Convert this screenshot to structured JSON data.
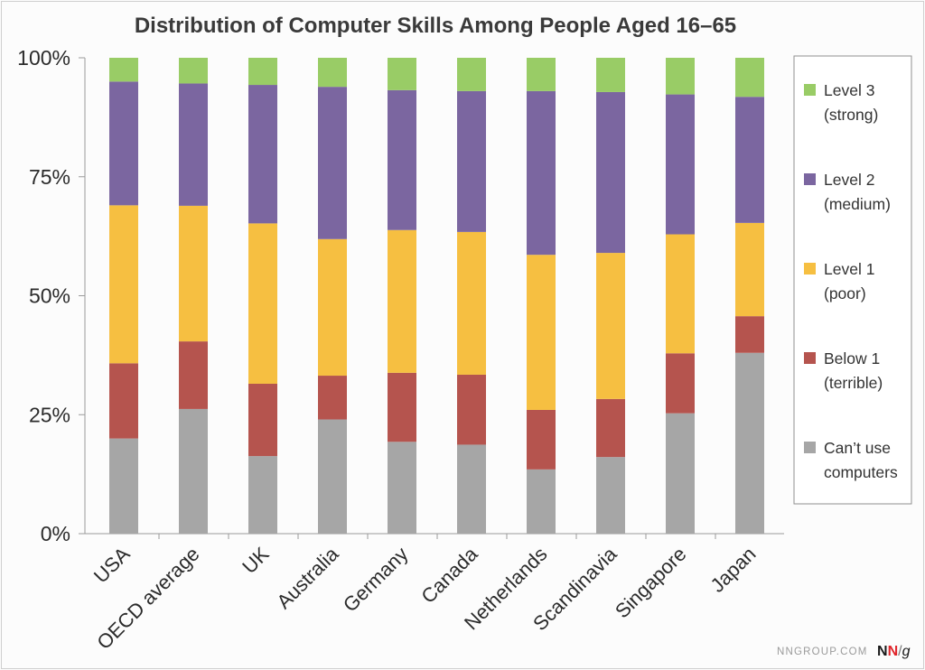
{
  "chart_data": {
    "type": "bar",
    "stacked": true,
    "title": "Distribution of Computer Skills Among People Aged 16–65",
    "categories": [
      "USA",
      "OECD average",
      "UK",
      "Australia",
      "Germany",
      "Canada",
      "Netherlands",
      "Scandinavia",
      "Singapore",
      "Japan"
    ],
    "ylim": [
      0,
      100
    ],
    "yticks": [
      "0%",
      "25%",
      "50%",
      "75%",
      "100%"
    ],
    "grid": false,
    "legend": "right",
    "series": [
      {
        "name": "Can't use computers",
        "label_lines": [
          "Can’t use",
          "computers"
        ],
        "color": "#a6a6a6",
        "values": [
          20,
          26.2,
          16.3,
          24,
          19.3,
          18.7,
          13.5,
          16.1,
          25.3,
          38
        ]
      },
      {
        "name": "Below 1 (terrible)",
        "label_lines": [
          "Below 1",
          "(terrible)"
        ],
        "color": "#b5544e",
        "values": [
          15.8,
          14.2,
          15.2,
          9.2,
          14.5,
          14.7,
          12.5,
          12.2,
          12.6,
          7.7
        ]
      },
      {
        "name": "Level 1 (poor)",
        "label_lines": [
          "Level 1",
          "(poor)"
        ],
        "color": "#f6bf41",
        "values": [
          33.2,
          28.5,
          33.7,
          28.7,
          30,
          30,
          32.6,
          30.7,
          25,
          19.6
        ]
      },
      {
        "name": "Level 2 (medium)",
        "label_lines": [
          "Level 2",
          "(medium)"
        ],
        "color": "#7b66a0",
        "values": [
          26,
          25.7,
          29.1,
          32,
          29.4,
          29.6,
          34.4,
          33.8,
          29.4,
          26.5
        ]
      },
      {
        "name": "Level 3 (strong)",
        "label_lines": [
          "Level 3",
          "(strong)"
        ],
        "color": "#99cc66",
        "values": [
          5,
          5.4,
          5.7,
          6.1,
          6.8,
          7,
          7,
          7.2,
          7.7,
          8.2
        ]
      }
    ]
  },
  "footer": {
    "site": "NNGROUP.COM",
    "logo_n1": "N",
    "logo_n2": "N",
    "logo_sep": "/",
    "logo_g": "g"
  }
}
